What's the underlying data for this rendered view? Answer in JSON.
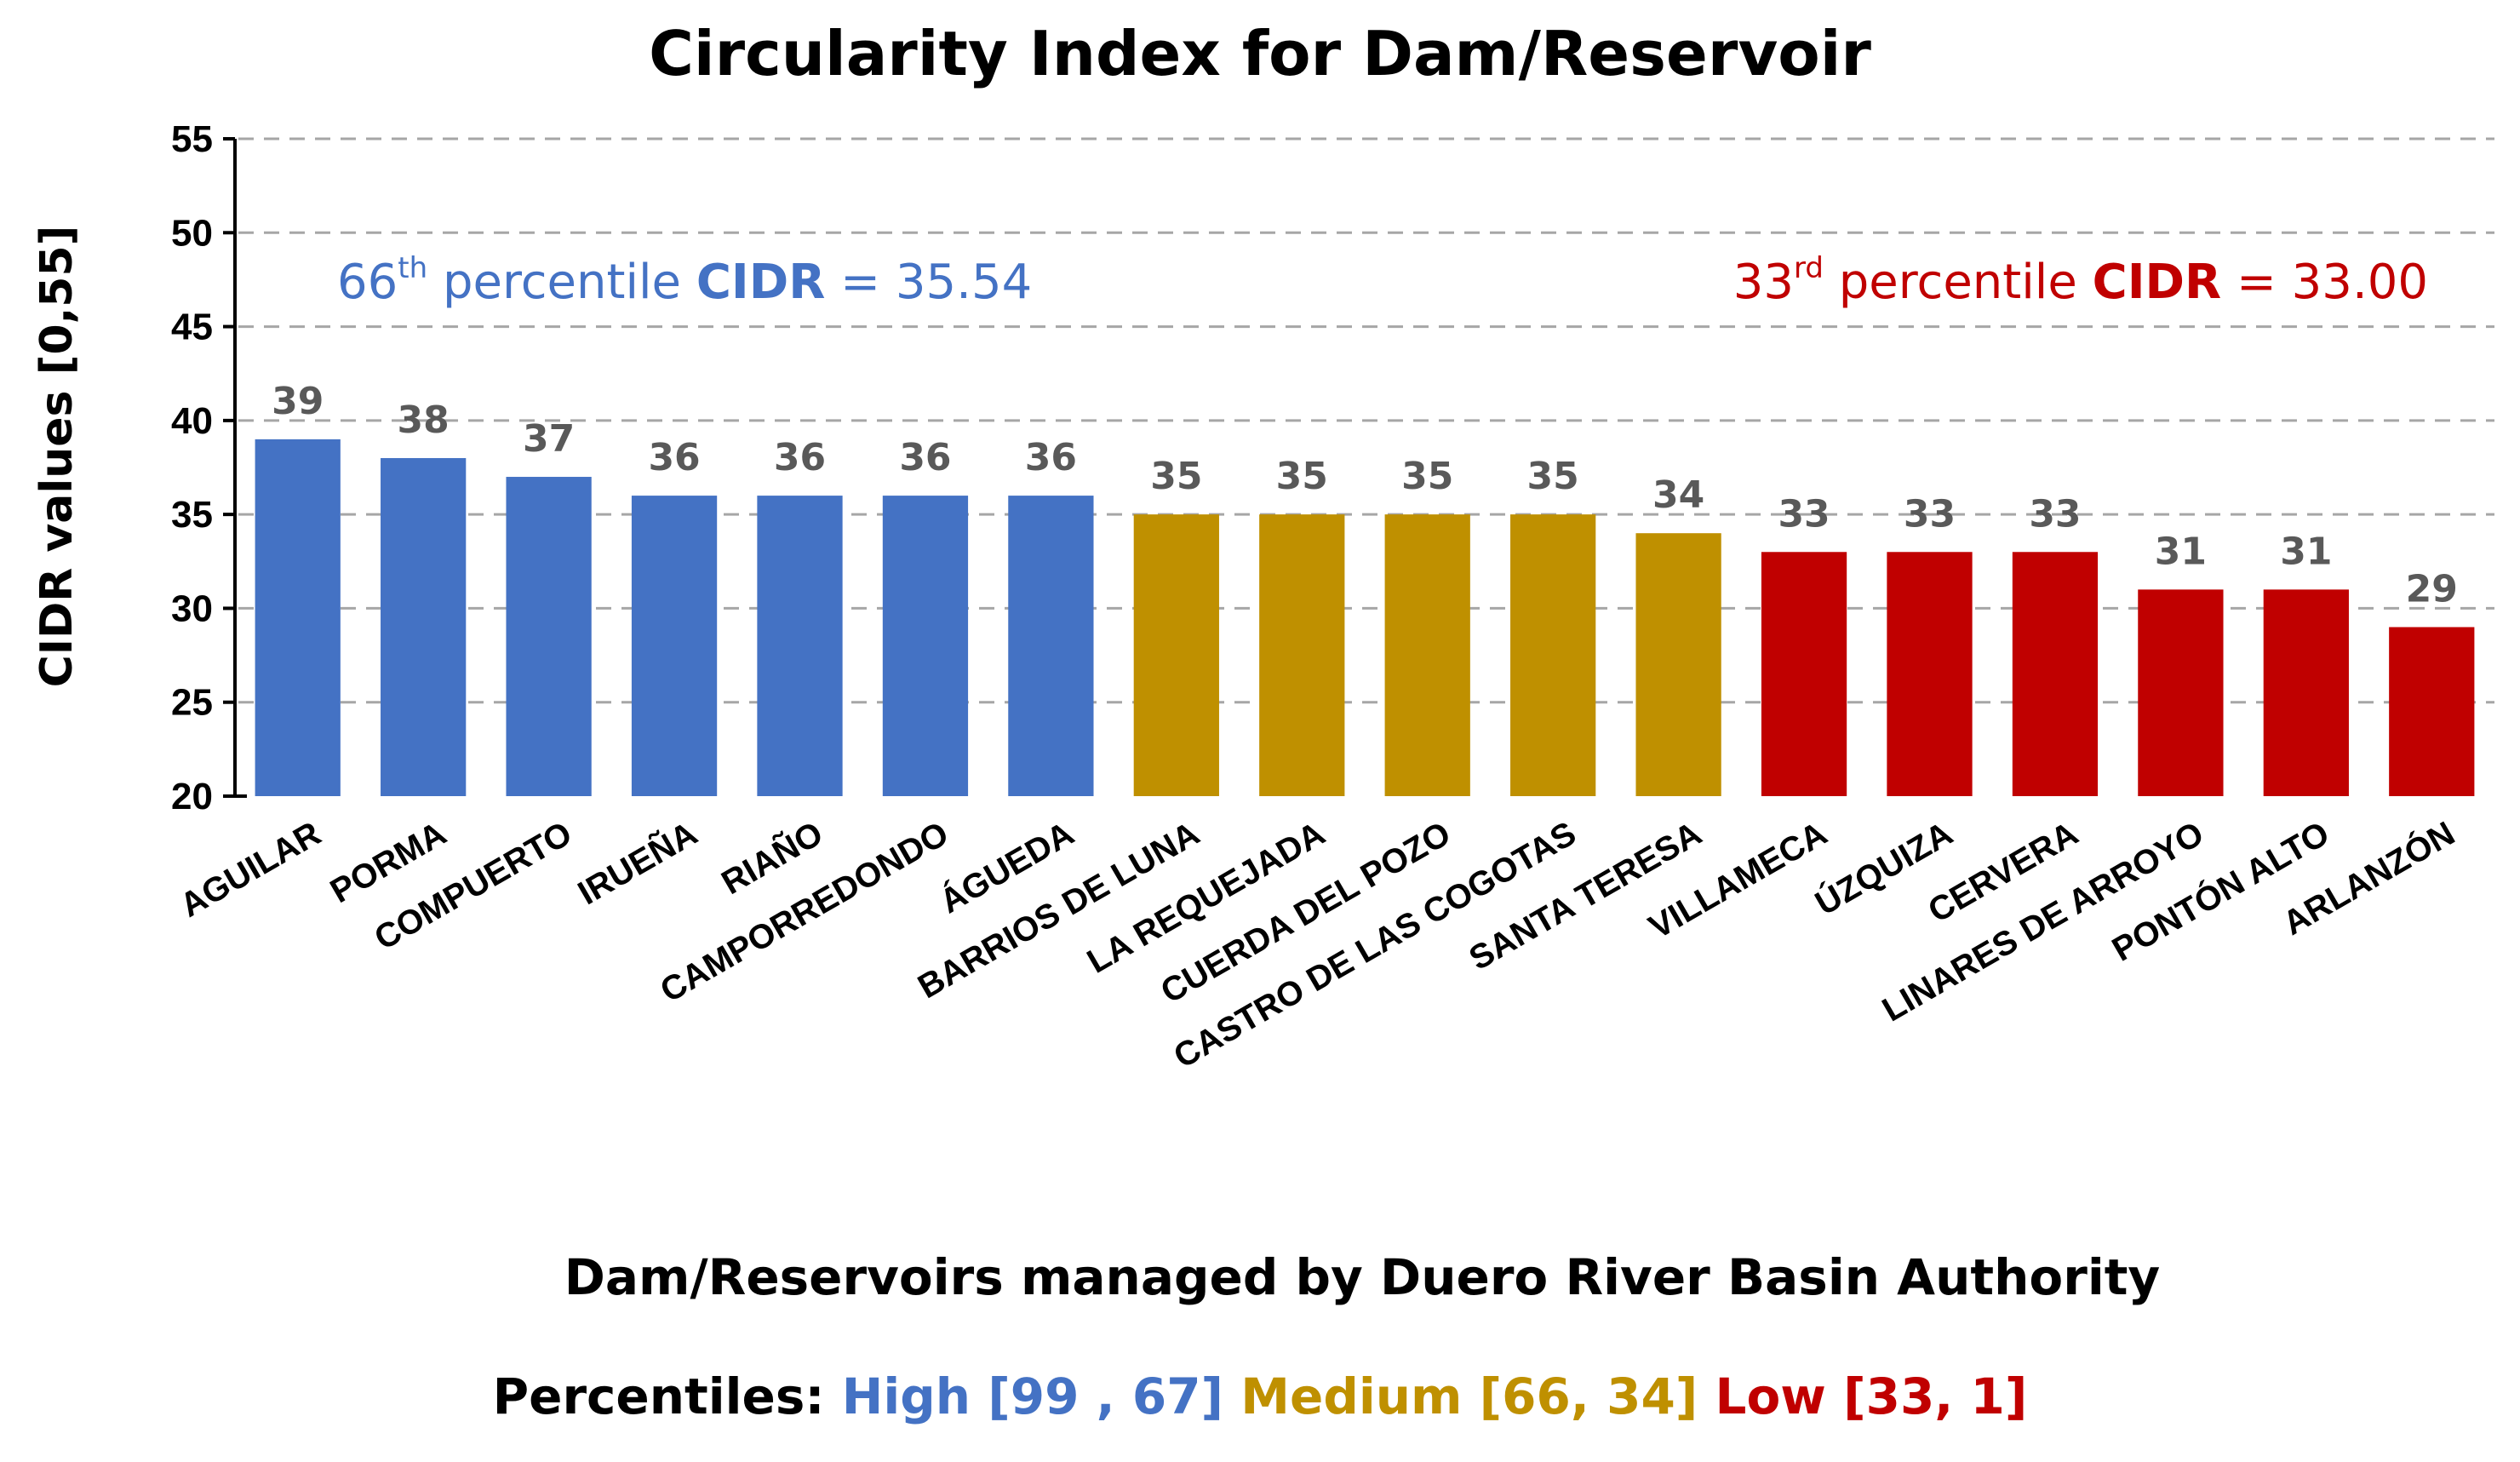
{
  "chart_data": {
    "type": "bar",
    "title": "Circularity Index for Dam/Reservoir",
    "xlabel": "Dam/Reservoirs managed by Duero River Basin Authority",
    "ylabel": "CIDR values [0,55]",
    "ylim": [
      20,
      55
    ],
    "yticks": [
      20,
      25,
      30,
      35,
      40,
      45,
      50,
      55
    ],
    "grid": true,
    "categories": [
      "AGUILAR",
      "PORMA",
      "COMPUERTO",
      "IRUEÑA",
      "RIAÑO",
      "CAMPORREDONDO",
      "ÁGUEDA",
      "BARRIOS DE LUNA",
      "LA REQUEJADA",
      "CUERDA DEL POZO",
      "CASTRO DE LAS COGOTAS",
      "SANTA TERESA",
      "VILLAMECA",
      "ÚZQUIZA",
      "CERVERA",
      "LINARES DE ARROYO",
      "PONTÓN ALTO",
      "ARLANZÓN"
    ],
    "values": [
      39,
      38,
      37,
      36,
      36,
      36,
      36,
      35,
      35,
      35,
      35,
      34,
      33,
      33,
      33,
      31,
      31,
      29
    ],
    "groups": [
      "high",
      "high",
      "high",
      "high",
      "high",
      "high",
      "high",
      "medium",
      "medium",
      "medium",
      "medium",
      "medium",
      "low",
      "low",
      "low",
      "low",
      "low",
      "low"
    ],
    "colors": {
      "high": "#4472c4",
      "medium": "#bf9000",
      "low": "#c00000"
    },
    "annotations": [
      {
        "id": "p66",
        "prefix": "66",
        "sup": "th",
        "text": " percentile ",
        "bold": "CIDR",
        "suffix": " = 35.54",
        "color": "#4472c4"
      },
      {
        "id": "p33",
        "prefix": "33",
        "sup": "rd",
        "text": " percentile ",
        "bold": "CIDR",
        "suffix": " = 33.00",
        "color": "#c00000"
      }
    ],
    "legend": {
      "label": "Percentiles:",
      "items": [
        {
          "group": "high",
          "text": "High [99 , 67]"
        },
        {
          "group": "medium",
          "text": "Medium  [66, 34]"
        },
        {
          "group": "low",
          "text": "Low [33, 1]"
        }
      ]
    }
  }
}
